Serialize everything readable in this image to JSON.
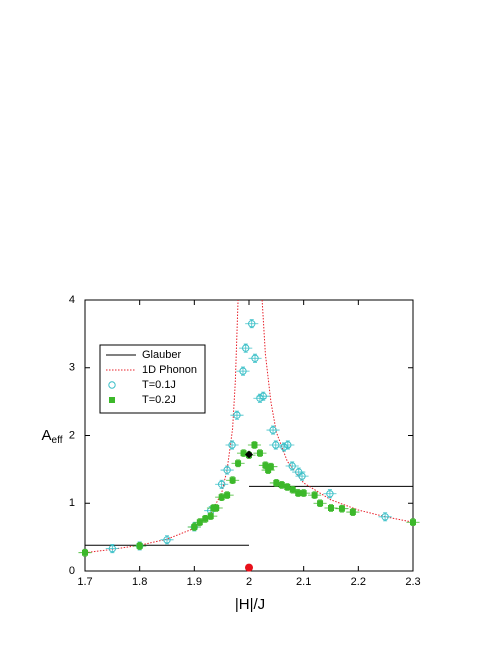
{
  "chart_data": {
    "type": "scatter",
    "xlabel": "|H|/J",
    "ylabel": "A",
    "ylabel_sub": "eff",
    "xlim": [
      1.7,
      2.3
    ],
    "ylim": [
      0,
      4
    ],
    "xticks": [
      1.7,
      1.8,
      1.9,
      2,
      2.1,
      2.2,
      2.3
    ],
    "yticks": [
      0,
      1,
      2,
      3,
      4
    ],
    "legend": "upper left",
    "series": [
      {
        "name": "Glauber",
        "color": "#000000",
        "kind": "line",
        "linestyle": "solid",
        "x": [
          1.7,
          2.0,
          2.0,
          2.0,
          2.3
        ],
        "values": [
          0.38,
          0.38,
          null,
          1.25,
          1.25
        ]
      },
      {
        "name": "1D Phonon",
        "color": "#e8202a",
        "kind": "line",
        "linestyle": "dotted",
        "x": [
          1.7,
          1.75,
          1.8,
          1.85,
          1.9,
          1.93,
          1.95,
          1.96,
          1.97,
          1.975,
          1.98,
          2.0,
          2.024,
          2.03,
          2.04,
          2.05,
          2.07,
          2.1,
          2.15,
          2.2,
          2.25,
          2.3
        ],
        "values": [
          0.27,
          0.32,
          0.38,
          0.47,
          0.63,
          0.85,
          1.15,
          1.5,
          2.1,
          2.8,
          4.0,
          null,
          4.0,
          3.2,
          2.5,
          2.05,
          1.62,
          1.3,
          1.05,
          0.9,
          0.8,
          0.72
        ]
      },
      {
        "name": "T=0.1J",
        "color": "#3cc0c8",
        "kind": "marker",
        "marker": "circle-open",
        "xerr": 0.012,
        "yerr": 0.06,
        "x": [
          1.75,
          1.8,
          1.85,
          1.9,
          1.93,
          1.95,
          1.96,
          1.969,
          1.978,
          1.989,
          1.994,
          2.005,
          2.011,
          2.02,
          2.026,
          2.044,
          2.049,
          2.064,
          2.071,
          2.079,
          2.091,
          2.097,
          2.148,
          2.249
        ],
        "values": [
          0.33,
          0.37,
          0.46,
          0.65,
          0.89,
          1.28,
          1.49,
          1.86,
          2.3,
          2.95,
          3.29,
          3.65,
          3.14,
          2.55,
          2.58,
          2.08,
          1.86,
          1.83,
          1.86,
          1.55,
          1.46,
          1.4,
          1.14,
          0.8
        ]
      },
      {
        "name": "T=0.2J",
        "color": "#3cb82a",
        "kind": "marker",
        "marker": "square",
        "xerr": 0.012,
        "yerr": 0.05,
        "x": [
          1.7,
          1.8,
          1.9,
          1.91,
          1.92,
          1.93,
          1.935,
          1.94,
          1.95,
          1.96,
          1.97,
          1.98,
          1.99,
          2.0,
          2.01,
          2.02,
          2.03,
          2.035,
          2.04,
          2.05,
          2.06,
          2.07,
          2.08,
          2.09,
          2.1,
          2.12,
          2.13,
          2.15,
          2.17,
          2.19,
          2.3
        ],
        "values": [
          0.27,
          0.37,
          0.65,
          0.72,
          0.77,
          0.81,
          0.93,
          0.93,
          1.09,
          1.12,
          1.34,
          1.59,
          1.74,
          1.71,
          1.86,
          1.74,
          1.56,
          1.49,
          1.54,
          1.3,
          1.27,
          1.24,
          1.2,
          1.15,
          1.15,
          1.12,
          1.0,
          0.93,
          0.92,
          0.87,
          0.72
        ]
      }
    ],
    "markers": [
      {
        "x": 2.0,
        "y": 1.72,
        "color": "#000000",
        "shape": "diamond"
      },
      {
        "x": 2.0,
        "y": 0.05,
        "color": "#e8101a",
        "shape": "dot"
      }
    ]
  }
}
